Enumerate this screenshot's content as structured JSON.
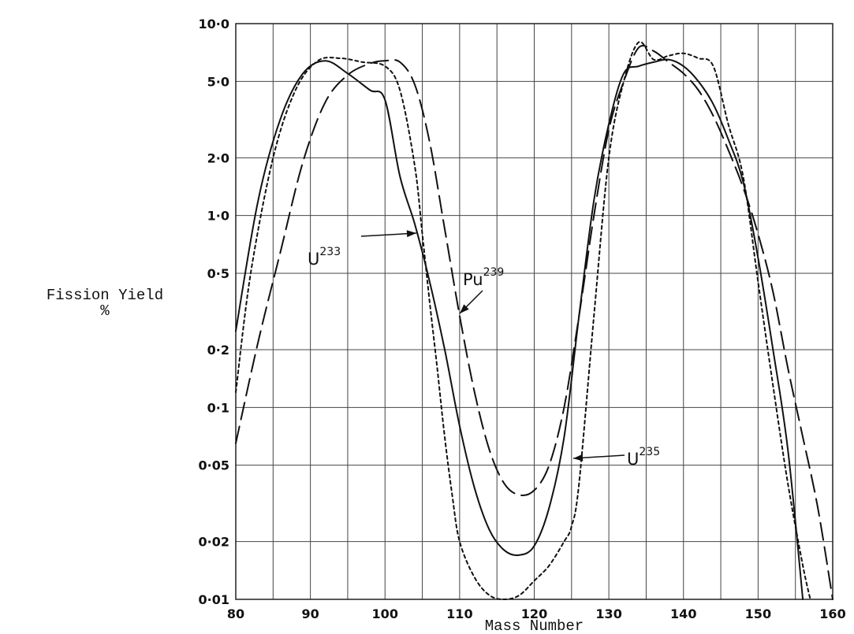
{
  "chart_data": {
    "type": "line",
    "title": "",
    "xlabel": "Mass Number",
    "ylabel": "Fission Yield",
    "ylabel_unit": "%",
    "xlim": [
      80,
      160
    ],
    "ylim": [
      0.01,
      10
    ],
    "y_scale": "log",
    "grid": true,
    "x_ticks": [
      80,
      90,
      100,
      110,
      120,
      130,
      140,
      150,
      160
    ],
    "x_tick_labels": [
      "80",
      "90",
      "100",
      "110",
      "120",
      "130",
      "140",
      "150",
      "160"
    ],
    "y_ticks": [
      0.01,
      0.02,
      0.05,
      0.1,
      0.2,
      0.5,
      1,
      2,
      5,
      10
    ],
    "y_tick_labels": [
      "0·01",
      "0·02",
      "0·05",
      "0·1",
      "0·2",
      "0·5",
      "1·0",
      "2·0",
      "5·0",
      "10·0"
    ],
    "series": [
      {
        "name": "U233",
        "label_base": "U",
        "label_sup": "233",
        "style": "solid",
        "x": [
          80,
          83,
          86,
          89,
          92,
          95,
          98,
          100,
          102,
          104,
          106,
          108,
          110,
          112,
          114,
          116,
          118,
          120,
          122,
          124,
          126,
          128,
          130,
          132,
          134,
          136,
          138,
          140,
          142,
          144,
          146,
          148,
          150,
          152,
          154,
          156
        ],
        "y": [
          0.25,
          1.2,
          3.2,
          5.5,
          6.4,
          5.5,
          4.5,
          4.0,
          1.6,
          0.9,
          0.45,
          0.2,
          0.08,
          0.038,
          0.023,
          0.018,
          0.017,
          0.019,
          0.03,
          0.07,
          0.3,
          1.2,
          3.0,
          5.5,
          6.0,
          6.3,
          6.5,
          6.0,
          5.0,
          3.8,
          2.5,
          1.5,
          0.6,
          0.2,
          0.06,
          0.01
        ]
      },
      {
        "name": "U235",
        "label_base": "U",
        "label_sup": "235",
        "style": "dotted",
        "x": [
          80,
          82,
          85,
          88,
          91,
          94,
          97,
          100,
          102,
          104,
          105,
          106,
          107,
          108,
          109,
          110,
          112,
          114,
          116,
          118,
          120,
          122,
          124,
          125,
          126,
          128,
          130,
          132,
          134,
          136,
          138,
          140,
          142,
          144,
          146,
          148,
          150,
          152,
          154,
          156,
          157
        ],
        "y": [
          0.12,
          0.5,
          2.0,
          4.5,
          6.4,
          6.6,
          6.3,
          6.0,
          4.5,
          1.8,
          0.8,
          0.35,
          0.16,
          0.07,
          0.035,
          0.02,
          0.013,
          0.0105,
          0.01,
          0.0105,
          0.0125,
          0.015,
          0.02,
          0.024,
          0.04,
          0.3,
          2.0,
          5.0,
          8.0,
          6.5,
          6.8,
          7.0,
          6.6,
          6.0,
          3.0,
          1.6,
          0.45,
          0.13,
          0.04,
          0.015,
          0.01
        ]
      },
      {
        "name": "Pu239",
        "label_base": "Pu",
        "label_sup": "239",
        "style": "dashed",
        "x": [
          80,
          83,
          86,
          89,
          92,
          95,
          98,
          100,
          102,
          104,
          106,
          108,
          110,
          112,
          114,
          116,
          118,
          120,
          122,
          124,
          126,
          128,
          130,
          132,
          134,
          136,
          138,
          140,
          142,
          144,
          146,
          148,
          150,
          152,
          154,
          156,
          158,
          160
        ],
        "y": [
          0.065,
          0.22,
          0.65,
          1.9,
          3.9,
          5.4,
          6.2,
          6.4,
          6.3,
          4.8,
          2.4,
          0.85,
          0.3,
          0.12,
          0.06,
          0.04,
          0.035,
          0.037,
          0.05,
          0.1,
          0.3,
          1.0,
          2.8,
          5.0,
          7.5,
          7.2,
          6.3,
          5.5,
          4.5,
          3.3,
          2.2,
          1.4,
          0.8,
          0.4,
          0.16,
          0.07,
          0.03,
          0.01
        ]
      }
    ]
  }
}
